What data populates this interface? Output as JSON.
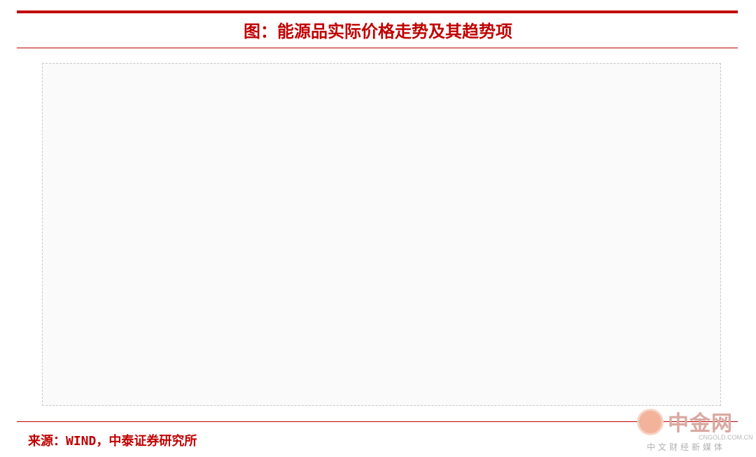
{
  "header": {
    "title": "图：能源品实际价格走势及其趋势项"
  },
  "footer": {
    "source": "来源：WIND，中泰证券研究所"
  },
  "watermark": {
    "name": "中金网",
    "site": "CNGOLD.COM.CN",
    "tagline": "中文财经新媒体"
  }
}
